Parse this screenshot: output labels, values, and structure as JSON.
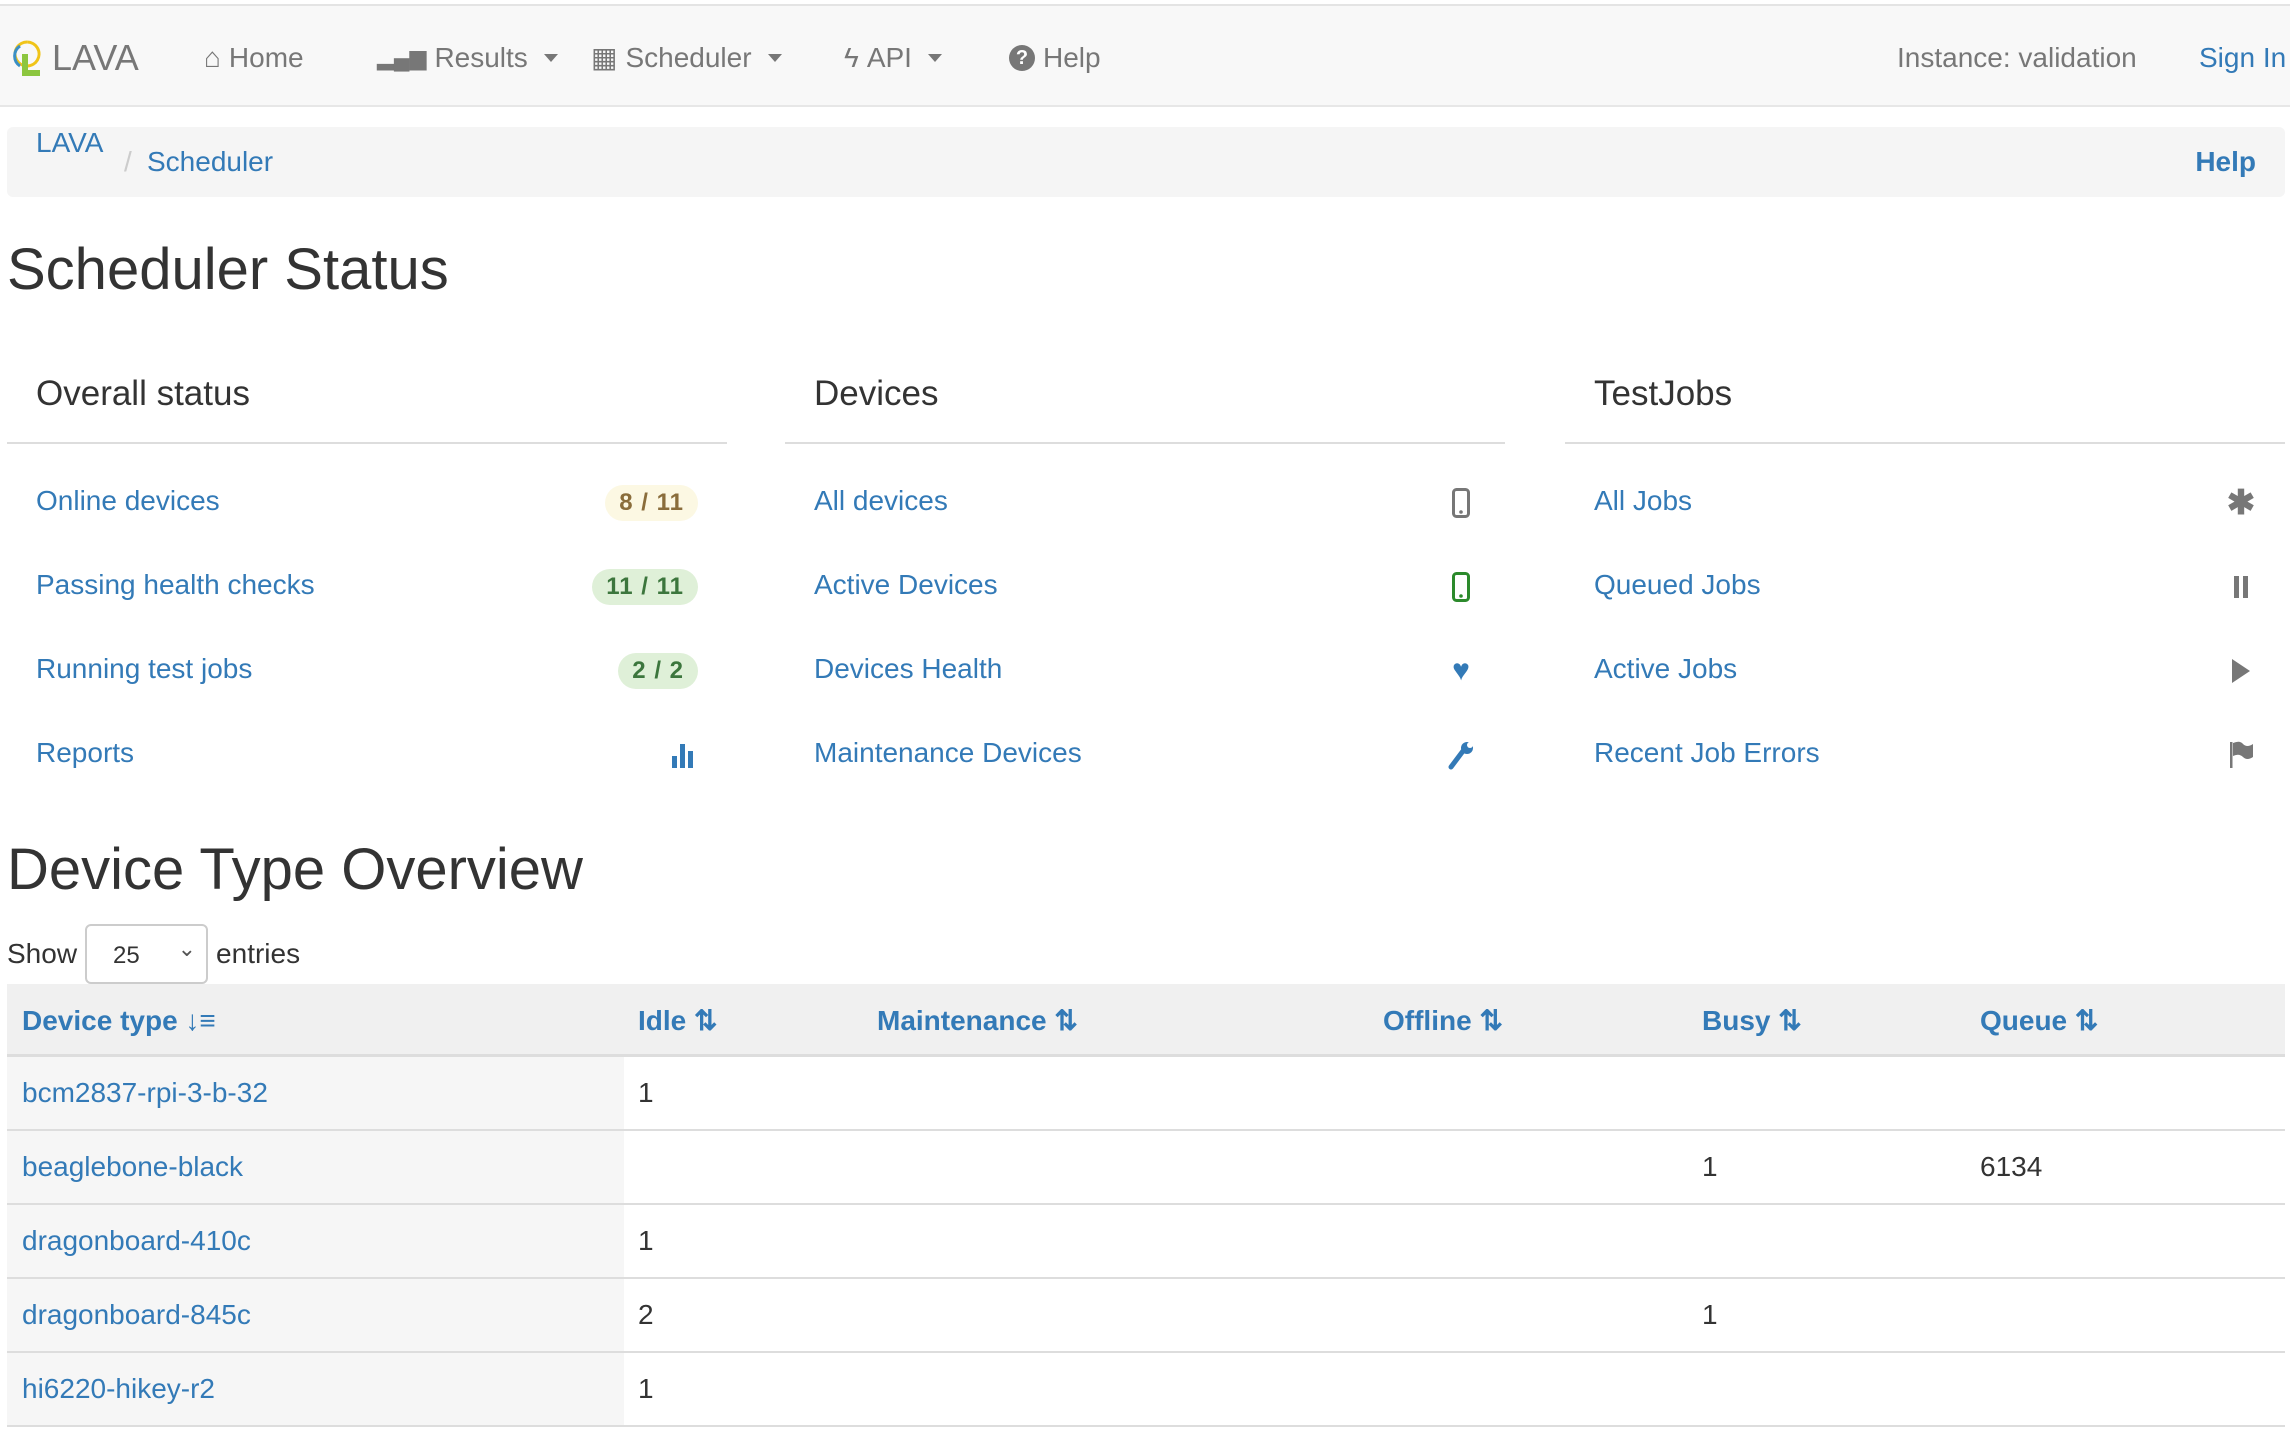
{
  "navbar": {
    "brand": "LAVA",
    "items": [
      {
        "label": "Home",
        "icon": "home-icon"
      },
      {
        "label": "Results",
        "icon": "signal-icon"
      },
      {
        "label": "Scheduler",
        "icon": "calendar-icon"
      },
      {
        "label": "API",
        "icon": "flash-icon"
      },
      {
        "label": "Help",
        "icon": "question-circle-icon"
      }
    ],
    "instance": "Instance: validation",
    "sign_in": "Sign In"
  },
  "breadcrumb": {
    "items": [
      "LAVA",
      "Scheduler"
    ],
    "separator": "/",
    "help": "Help"
  },
  "page_title": "Scheduler Status",
  "overall": {
    "title": "Overall status",
    "rows": [
      {
        "label": "Online devices",
        "badge": "8 / 11",
        "badge_color": "#8a6d3b",
        "badge_bg": "#fcf8e3"
      },
      {
        "label": "Passing health checks",
        "badge": "11 / 11",
        "badge_color": "#3c763d",
        "badge_bg": "#dff0d8"
      },
      {
        "label": "Running test jobs",
        "badge": "2 / 2",
        "badge_color": "#3c763d",
        "badge_bg": "#dff0d8"
      },
      {
        "label": "Reports",
        "icon": "bar-chart-icon"
      }
    ]
  },
  "devices": {
    "title": "Devices",
    "rows": [
      {
        "label": "All devices",
        "icon": "phone-icon"
      },
      {
        "label": "Active Devices",
        "icon": "phone-green-icon"
      },
      {
        "label": "Devices Health",
        "icon": "heart-icon"
      },
      {
        "label": "Maintenance Devices",
        "icon": "wrench-icon"
      }
    ]
  },
  "testjobs": {
    "title": "TestJobs",
    "rows": [
      {
        "label": "All Jobs",
        "icon": "asterisk-icon"
      },
      {
        "label": "Queued Jobs",
        "icon": "pause-icon"
      },
      {
        "label": "Active Jobs",
        "icon": "play-icon"
      },
      {
        "label": "Recent Job Errors",
        "icon": "flag-icon"
      }
    ]
  },
  "overview": {
    "title": "Device Type Overview",
    "show": "Show",
    "entries_value": "25",
    "entries": "entries",
    "columns": [
      "Device type",
      "Idle",
      "Maintenance",
      "Offline",
      "Busy",
      "Queue"
    ],
    "rows": [
      [
        "bcm2837-rpi-3-b-32",
        "1",
        "",
        "",
        "",
        ""
      ],
      [
        "beaglebone-black",
        "",
        "",
        "",
        "1",
        "6134"
      ],
      [
        "dragonboard-410c",
        "1",
        "",
        "",
        "",
        ""
      ],
      [
        "dragonboard-845c",
        "2",
        "",
        "",
        "1",
        ""
      ],
      [
        "hi6220-hikey-r2",
        "1",
        "",
        "",
        "",
        ""
      ]
    ]
  },
  "colors": {
    "link": "#337ab7",
    "navbar_bg": "#f8f8f8"
  }
}
